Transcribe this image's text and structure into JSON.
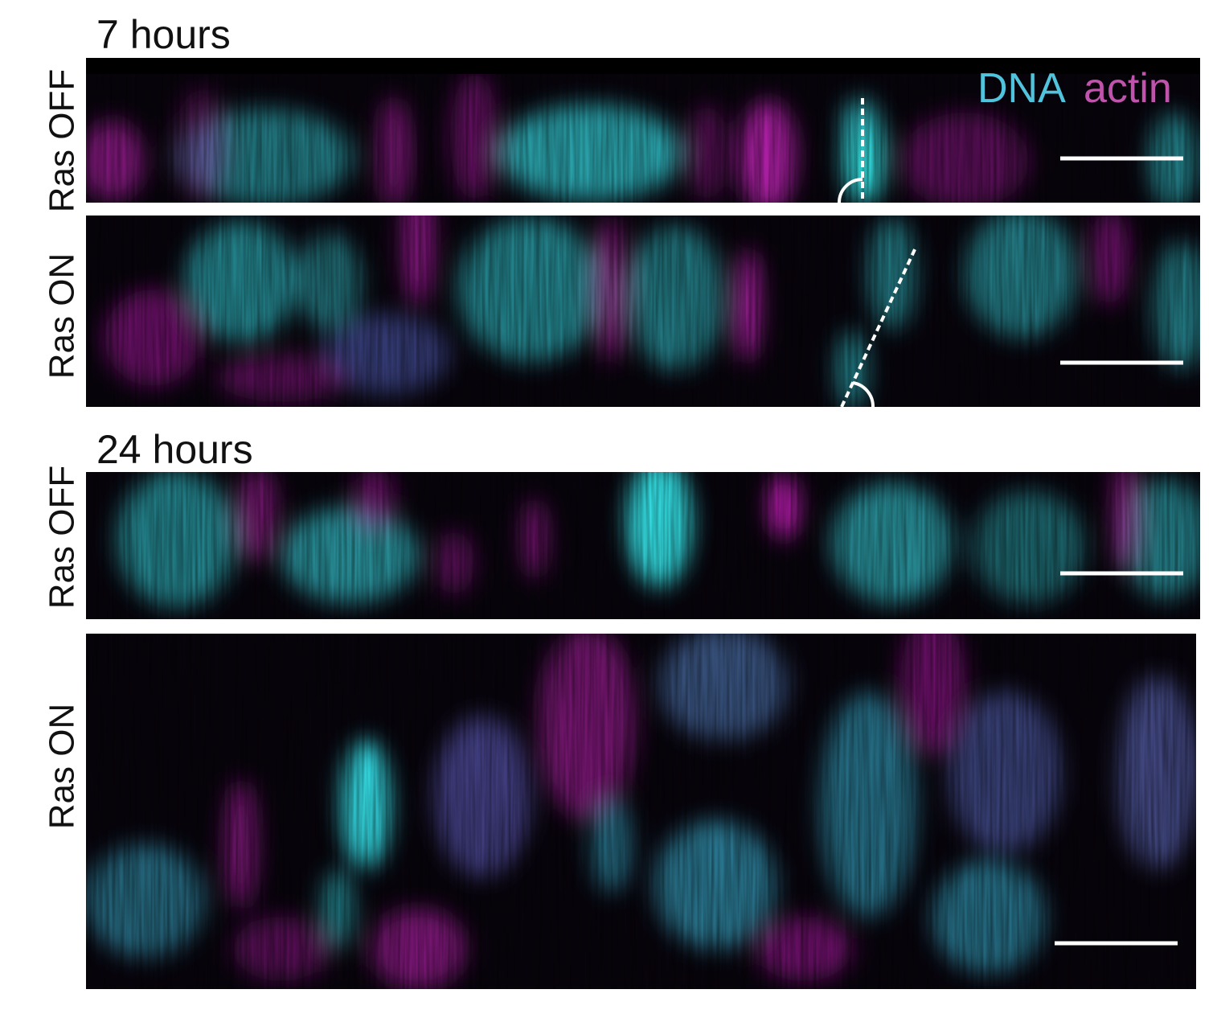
{
  "legend": {
    "dna": "DNA",
    "actin": "actin"
  },
  "groups": [
    {
      "title": "7 hours",
      "rows": [
        {
          "label": "Ras OFF"
        },
        {
          "label": "Ras ON"
        }
      ]
    },
    {
      "title": "24 hours",
      "rows": [
        {
          "label": "Ras OFF"
        },
        {
          "label": "Ras ON"
        }
      ]
    }
  ]
}
